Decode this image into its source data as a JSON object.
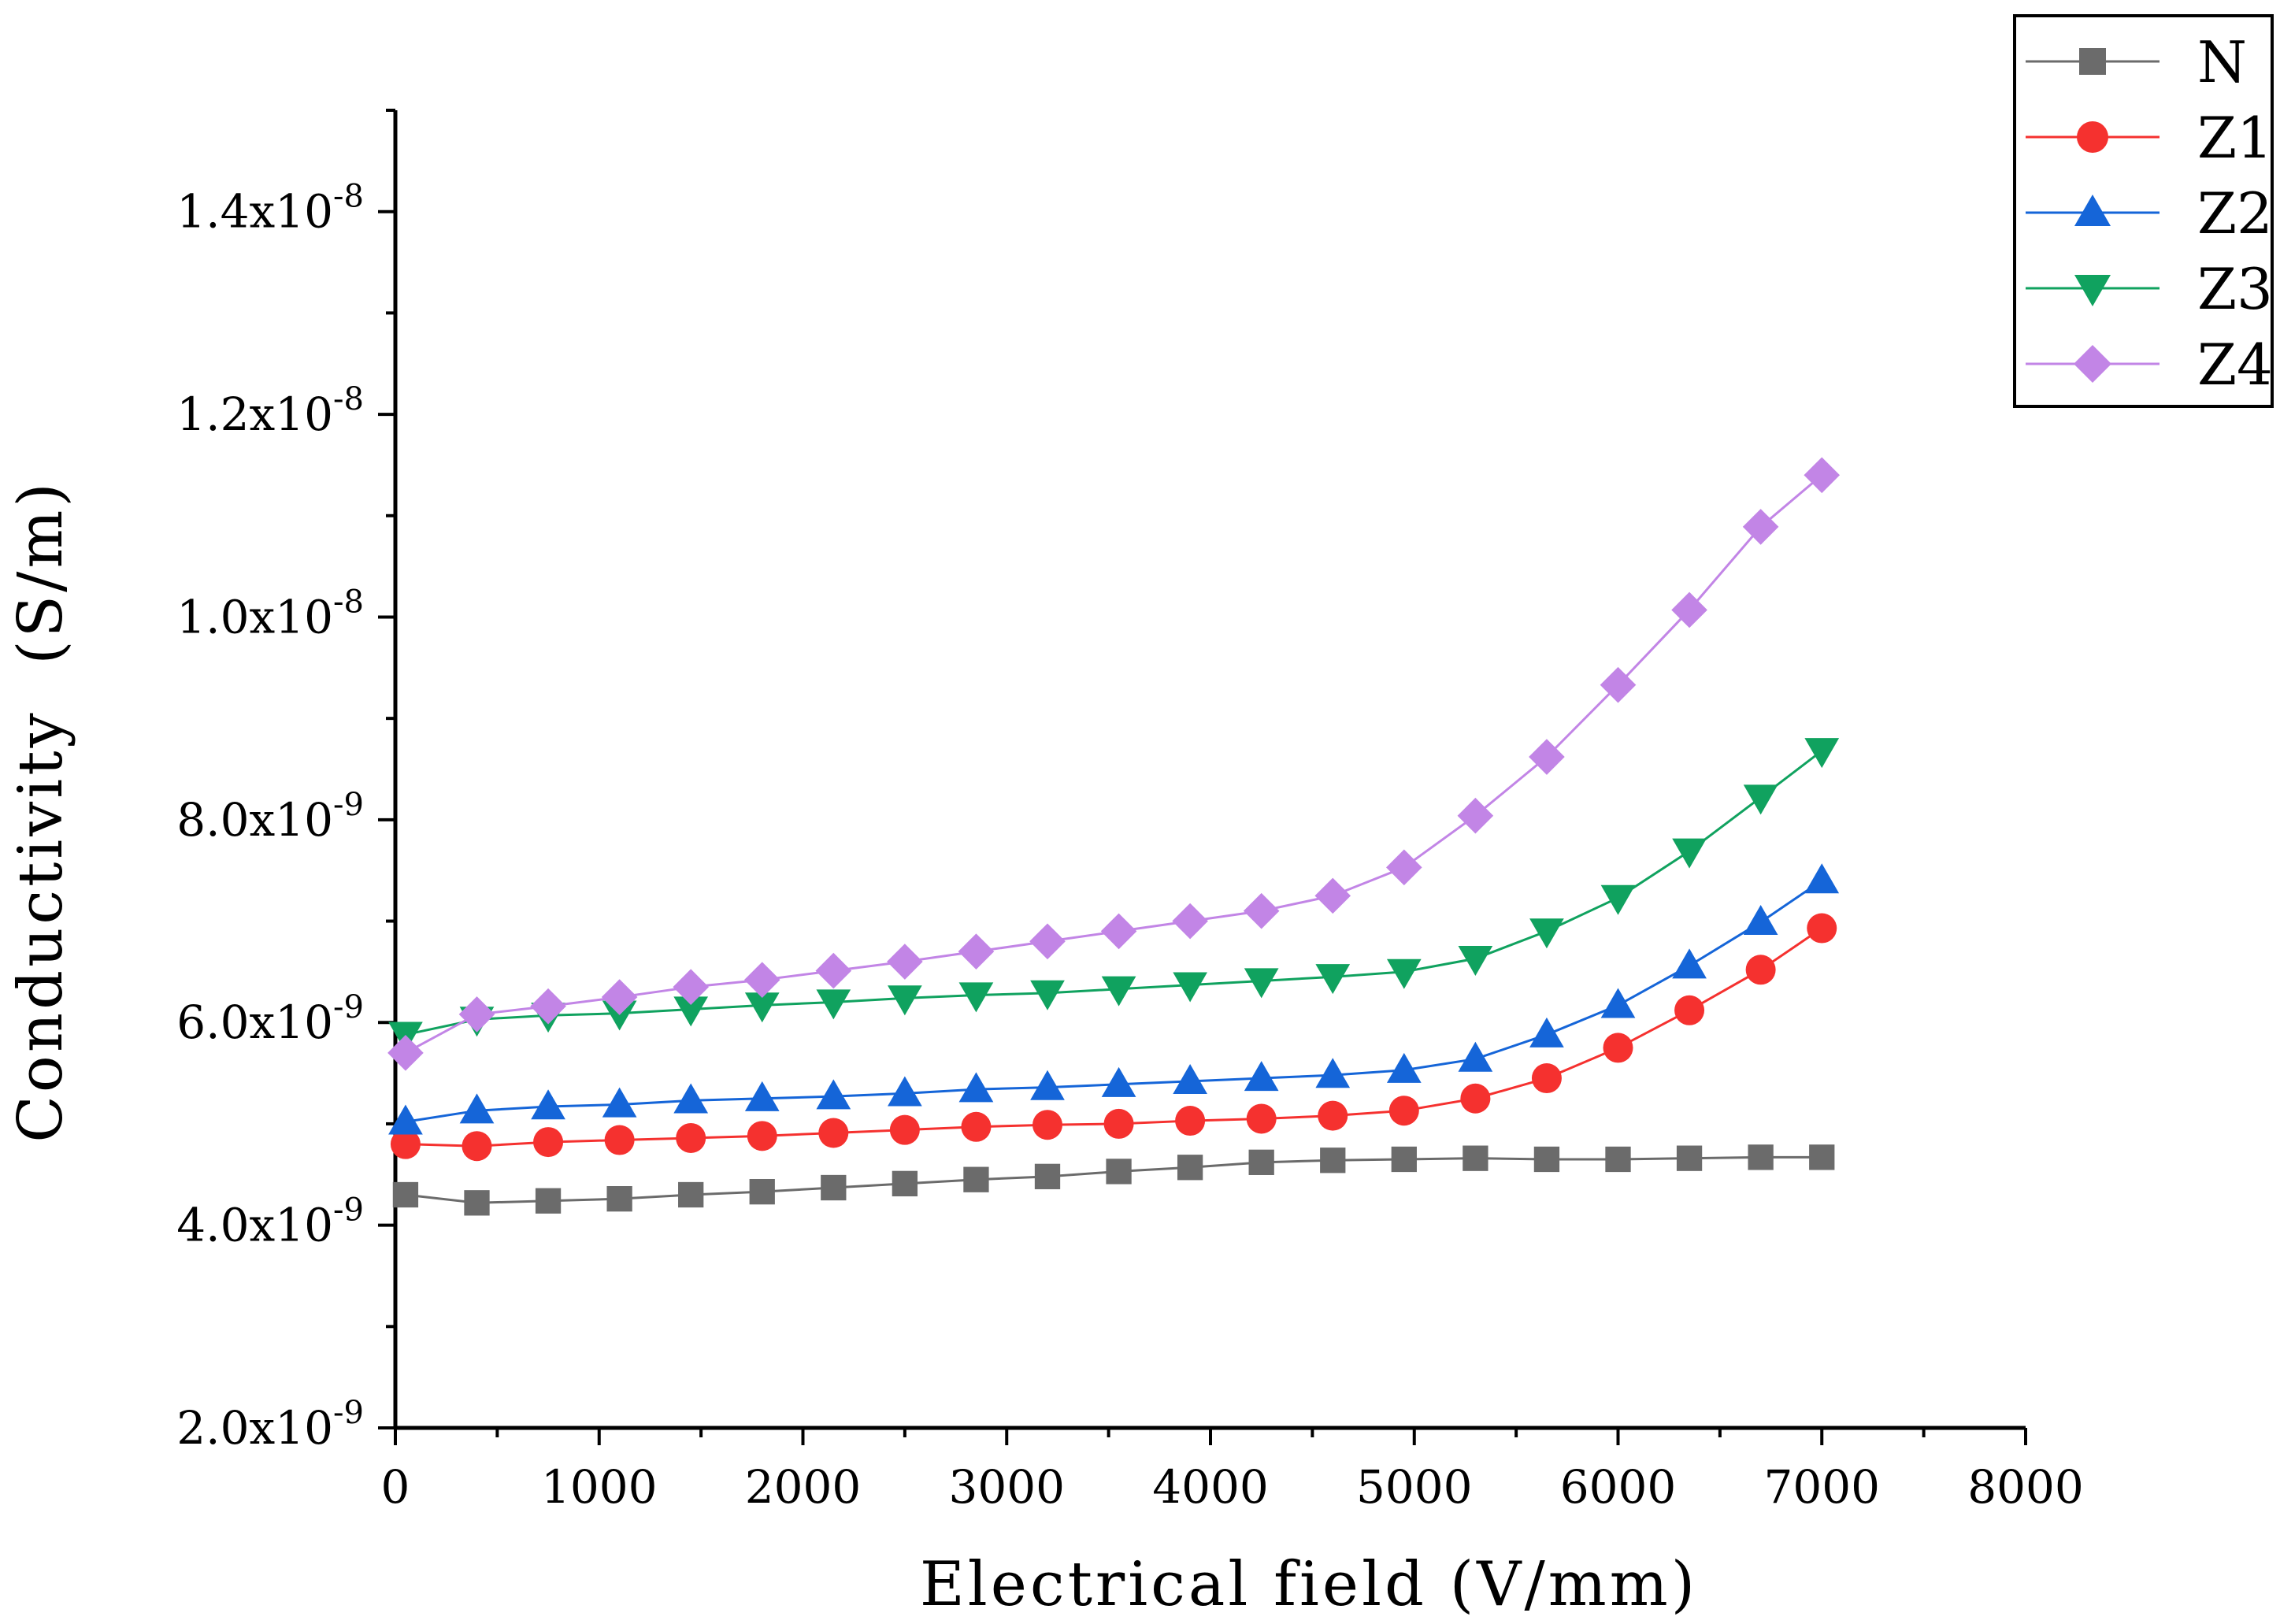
{
  "chart_data": {
    "type": "line",
    "title": "",
    "xlabel": "Electrical field (V/mm)",
    "ylabel": "Conductivity  (S/m)",
    "xlim": [
      0,
      8000
    ],
    "ylim": [
      2e-09,
      1.5e-08
    ],
    "x_ticks": [
      0,
      1000,
      2000,
      3000,
      4000,
      5000,
      6000,
      7000,
      8000
    ],
    "x_tick_labels": [
      "0",
      "1000",
      "2000",
      "3000",
      "4000",
      "5000",
      "6000",
      "7000",
      "8000"
    ],
    "y_ticks": [
      2e-09,
      4e-09,
      6e-09,
      8e-09,
      1e-08,
      1.2e-08,
      1.4e-08
    ],
    "y_tick_labels": [
      {
        "mantissa": "2.0x10",
        "exponent": "-9"
      },
      {
        "mantissa": "4.0x10",
        "exponent": "-9"
      },
      {
        "mantissa": "6.0x10",
        "exponent": "-9"
      },
      {
        "mantissa": "8.0x10",
        "exponent": "-9"
      },
      {
        "mantissa": "1.0x10",
        "exponent": "-8"
      },
      {
        "mantissa": "1.2x10",
        "exponent": "-8"
      },
      {
        "mantissa": "1.4x10",
        "exponent": "-8"
      }
    ],
    "grid": false,
    "legend_position": "top-right",
    "x": [
      50,
      400,
      750,
      1100,
      1450,
      1800,
      2150,
      2500,
      2850,
      3200,
      3550,
      3900,
      4250,
      4600,
      4950,
      5300,
      5650,
      6000,
      6350,
      6700,
      7000
    ],
    "series": [
      {
        "name": "N",
        "marker": "square",
        "color": "#6b6b6b",
        "values": [
          4.3e-09,
          4.22e-09,
          4.24e-09,
          4.26e-09,
          4.3e-09,
          4.33e-09,
          4.37e-09,
          4.41e-09,
          4.45e-09,
          4.48e-09,
          4.53e-09,
          4.57e-09,
          4.62e-09,
          4.64e-09,
          4.65e-09,
          4.66e-09,
          4.65e-09,
          4.65e-09,
          4.66e-09,
          4.67e-09,
          4.67e-09
        ]
      },
      {
        "name": "Z1",
        "marker": "circle",
        "color": "#f5312f",
        "values": [
          4.8e-09,
          4.78e-09,
          4.82e-09,
          4.84e-09,
          4.86e-09,
          4.88e-09,
          4.91e-09,
          4.94e-09,
          4.97e-09,
          4.99e-09,
          5e-09,
          5.03e-09,
          5.05e-09,
          5.08e-09,
          5.13e-09,
          5.25e-09,
          5.45e-09,
          5.75e-09,
          6.12e-09,
          6.52e-09,
          6.93e-09
        ]
      },
      {
        "name": "Z2",
        "marker": "triangle-up",
        "color": "#1565d8",
        "values": [
          5.02e-09,
          5.13e-09,
          5.17e-09,
          5.19e-09,
          5.23e-09,
          5.25e-09,
          5.27e-09,
          5.3e-09,
          5.34e-09,
          5.36e-09,
          5.39e-09,
          5.42e-09,
          5.45e-09,
          5.48e-09,
          5.53e-09,
          5.64e-09,
          5.88e-09,
          6.17e-09,
          6.56e-09,
          6.99e-09,
          7.4e-09
        ]
      },
      {
        "name": "Z3",
        "marker": "triangle-down",
        "color": "#10a25f",
        "values": [
          5.88e-09,
          6.03e-09,
          6.07e-09,
          6.09e-09,
          6.13e-09,
          6.17e-09,
          6.2e-09,
          6.24e-09,
          6.27e-09,
          6.29e-09,
          6.33e-09,
          6.37e-09,
          6.41e-09,
          6.45e-09,
          6.5e-09,
          6.63e-09,
          6.9e-09,
          7.23e-09,
          7.69e-09,
          8.22e-09,
          8.68e-09
        ]
      },
      {
        "name": "Z4",
        "marker": "diamond",
        "color": "#c285e6",
        "values": [
          5.7e-09,
          6.08e-09,
          6.16e-09,
          6.25e-09,
          6.35e-09,
          6.42e-09,
          6.51e-09,
          6.6e-09,
          6.7e-09,
          6.8e-09,
          6.9e-09,
          7e-09,
          7.1e-09,
          7.25e-09,
          7.53e-09,
          8.04e-09,
          8.62e-09,
          9.33e-09,
          1.007e-08,
          1.089e-08,
          1.14e-08
        ]
      }
    ]
  }
}
